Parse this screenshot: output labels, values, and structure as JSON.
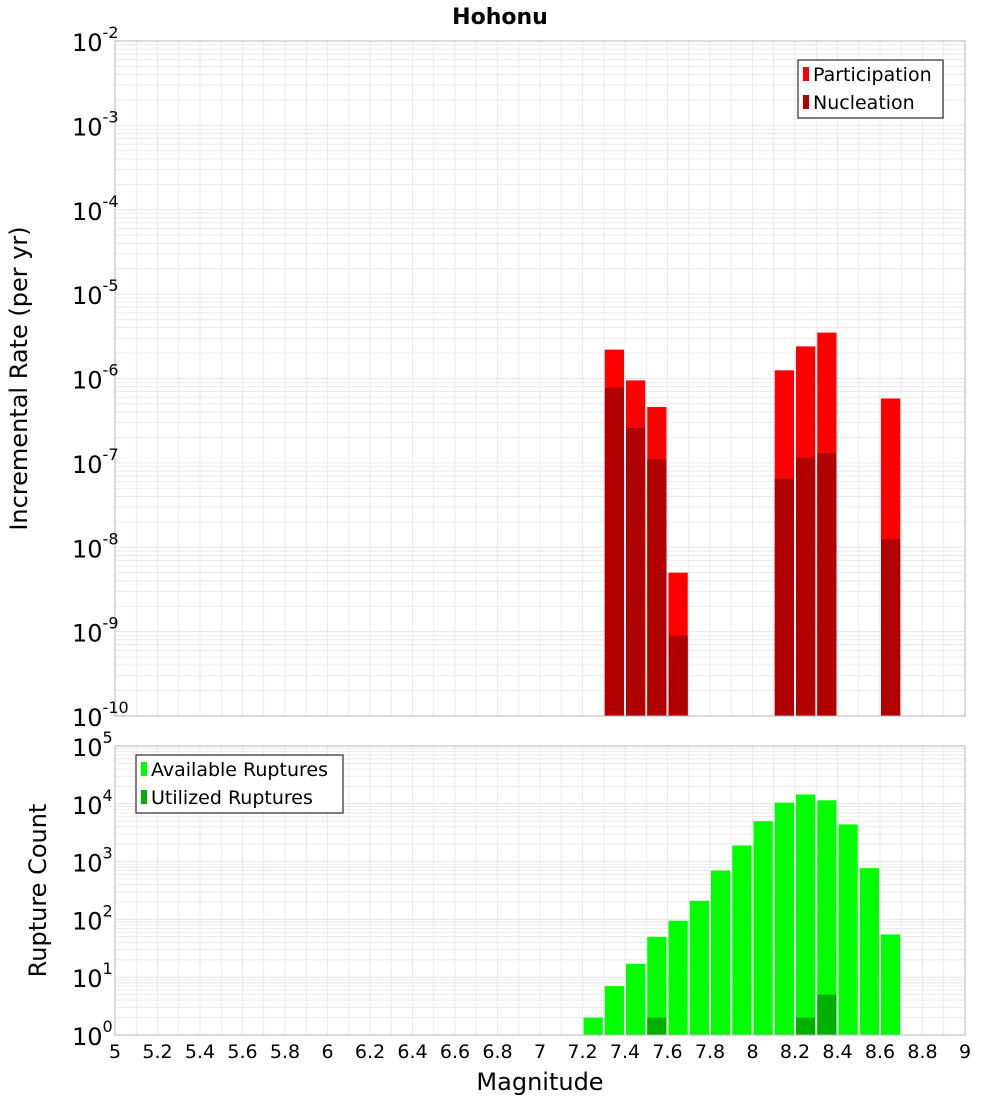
{
  "title": "Hohonu",
  "colors": {
    "participation": "#ff0000",
    "nucleation": "#b00000",
    "available": "#00ff00",
    "utilized": "#00b000",
    "grid": "#e6e6e6",
    "frame": "#b4b4b4"
  },
  "xlabel": "Magnitude",
  "xticks": [
    "5",
    "5.2",
    "5.4",
    "5.6",
    "5.8",
    "6",
    "6.2",
    "6.4",
    "6.6",
    "6.8",
    "7",
    "7.2",
    "7.4",
    "7.6",
    "7.8",
    "8",
    "8.2",
    "8.4",
    "8.6",
    "8.8",
    "9"
  ],
  "chart_data": [
    {
      "type": "bar",
      "ylabel": "Incremental Rate (per yr)",
      "yscale": "log",
      "xlim": [
        5,
        9
      ],
      "ylim_exponents": [
        -10,
        -2
      ],
      "ytick_exponents": [
        "-10",
        "-9",
        "-8",
        "-7",
        "-6",
        "-5",
        "-4",
        "-3",
        "-2"
      ],
      "legend": {
        "position": "top-right",
        "entries": [
          "Participation",
          "Nucleation"
        ]
      },
      "bin_width": 0.1,
      "series": [
        {
          "name": "Participation",
          "x": [
            7.35,
            7.45,
            7.55,
            7.65,
            8.15,
            8.25,
            8.35,
            8.65
          ],
          "values": [
            2.2e-06,
            9.5e-07,
            4.6e-07,
            5e-09,
            1.25e-06,
            2.4e-06,
            3.5e-06,
            5.8e-07
          ]
        },
        {
          "name": "Nucleation",
          "x": [
            7.35,
            7.45,
            7.55,
            7.65,
            8.15,
            8.25,
            8.35,
            8.65
          ],
          "values": [
            7.8e-07,
            2.6e-07,
            1.1e-07,
            9e-10,
            6.5e-08,
            1.15e-07,
            1.3e-07,
            1.25e-08
          ]
        }
      ]
    },
    {
      "type": "bar",
      "ylabel": "Rupture Count",
      "yscale": "log",
      "xlim": [
        5,
        9
      ],
      "ylim_exponents": [
        0,
        5
      ],
      "ytick_exponents": [
        "0",
        "1",
        "2",
        "3",
        "4",
        "5"
      ],
      "legend": {
        "position": "top-left",
        "entries": [
          "Available Ruptures",
          "Utilized Ruptures"
        ]
      },
      "bin_width": 0.1,
      "series": [
        {
          "name": "Available Ruptures",
          "x": [
            6.95,
            7.25,
            7.35,
            7.45,
            7.55,
            7.65,
            7.75,
            7.85,
            7.95,
            8.05,
            8.15,
            8.25,
            8.35,
            8.45,
            8.55,
            8.65
          ],
          "values": [
            1,
            2,
            7,
            17,
            50,
            95,
            210,
            700,
            1900,
            5000,
            10500,
            14500,
            11500,
            4400,
            770,
            55
          ]
        },
        {
          "name": "Utilized Ruptures",
          "x": [
            7.35,
            7.45,
            7.55,
            7.65,
            8.15,
            8.25,
            8.35,
            8.65
          ],
          "values": [
            1,
            1,
            2,
            1,
            1,
            2,
            5,
            1
          ]
        }
      ]
    }
  ]
}
